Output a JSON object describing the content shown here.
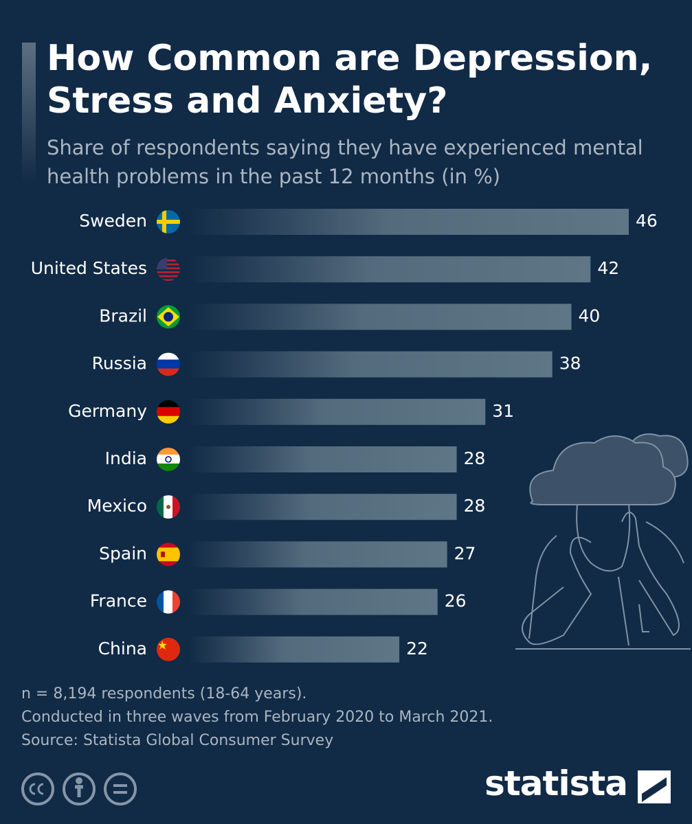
{
  "chart_data": {
    "type": "bar",
    "title": "How Common are Depression, Stress and Anxiety?",
    "subtitle": "Share of respondents saying they have experienced mental health problems in the past 12 months (in %)",
    "categories": [
      "Sweden",
      "United States",
      "Brazil",
      "Russia",
      "Germany",
      "India",
      "Mexico",
      "Spain",
      "France",
      "China"
    ],
    "values": [
      46,
      42,
      40,
      38,
      31,
      28,
      28,
      27,
      26,
      22
    ],
    "color": "#5f7686"
  },
  "footer": {
    "notes": [
      "n = 8,194 respondents (18-64 years).",
      "Conducted in three waves from February 2020 to March 2021.",
      "Source: Statista Global Consumer Survey"
    ],
    "logo": "statista"
  }
}
